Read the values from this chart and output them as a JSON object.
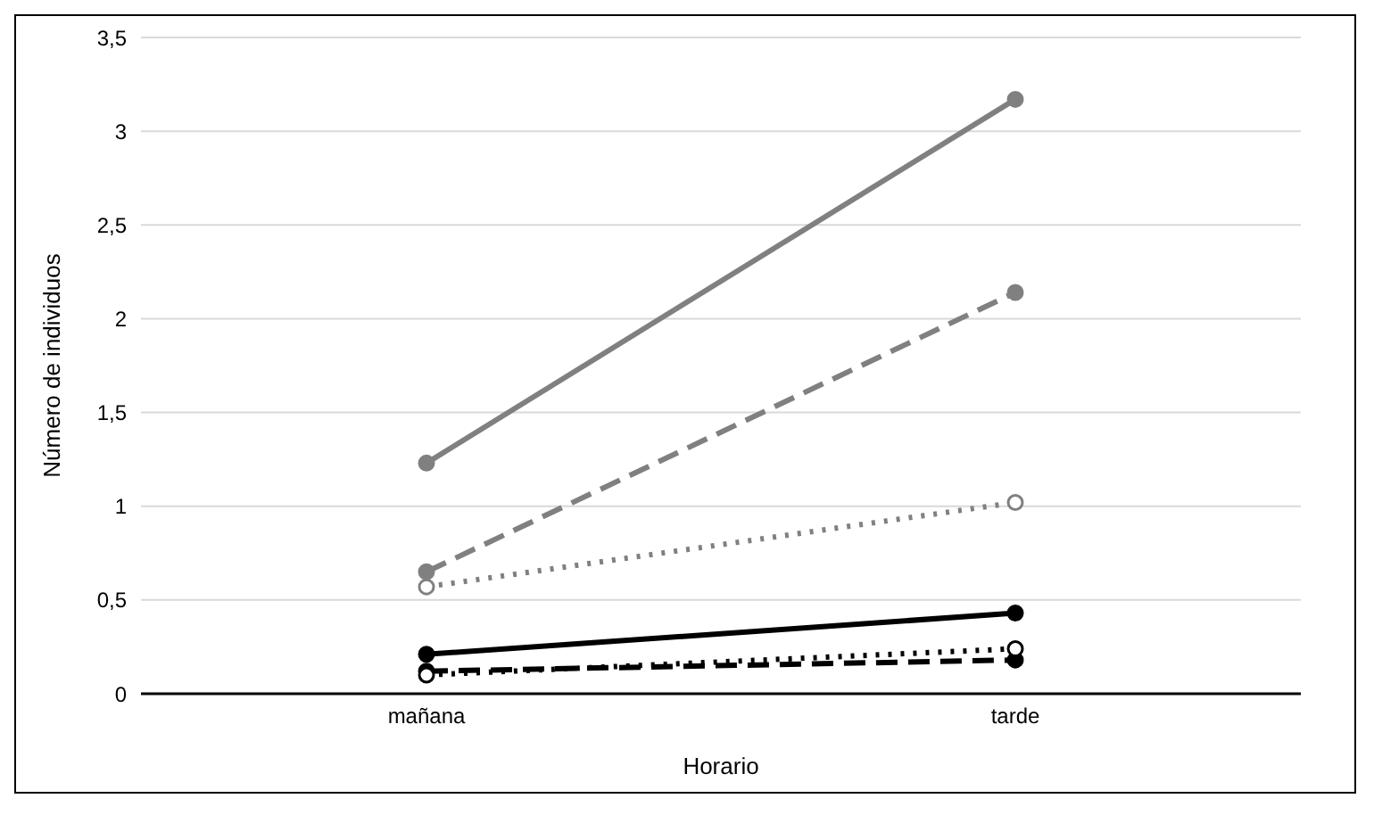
{
  "chart_data": {
    "type": "line",
    "xlabel": "Horario",
    "ylabel": "Número de individuos",
    "categories": [
      "mañana",
      "tarde"
    ],
    "ylim": [
      0,
      3.5
    ],
    "yticks": [
      0,
      {
        "value": 0.5,
        "label": "0,5"
      },
      1,
      {
        "value": 1.5,
        "label": "1,5"
      },
      2,
      {
        "value": 2.5,
        "label": "2,5"
      },
      3,
      {
        "value": 3.5,
        "label": "3,5"
      }
    ],
    "grid": "y",
    "marker": "circle",
    "series": [
      {
        "color": "#808080",
        "line_style": "solid",
        "values": [
          1.23,
          3.17
        ]
      },
      {
        "color": "#808080",
        "line_style": "dashed",
        "values": [
          0.65,
          2.14
        ]
      },
      {
        "color": "#808080",
        "line_style": "dotted",
        "values": [
          0.57,
          1.02
        ]
      },
      {
        "color": "#000000",
        "line_style": "solid",
        "values": [
          0.21,
          0.43
        ]
      },
      {
        "color": "#000000",
        "line_style": "dashed",
        "values": [
          0.12,
          0.18
        ]
      },
      {
        "color": "#000000",
        "line_style": "dotted",
        "values": [
          0.1,
          0.24
        ]
      }
    ]
  }
}
